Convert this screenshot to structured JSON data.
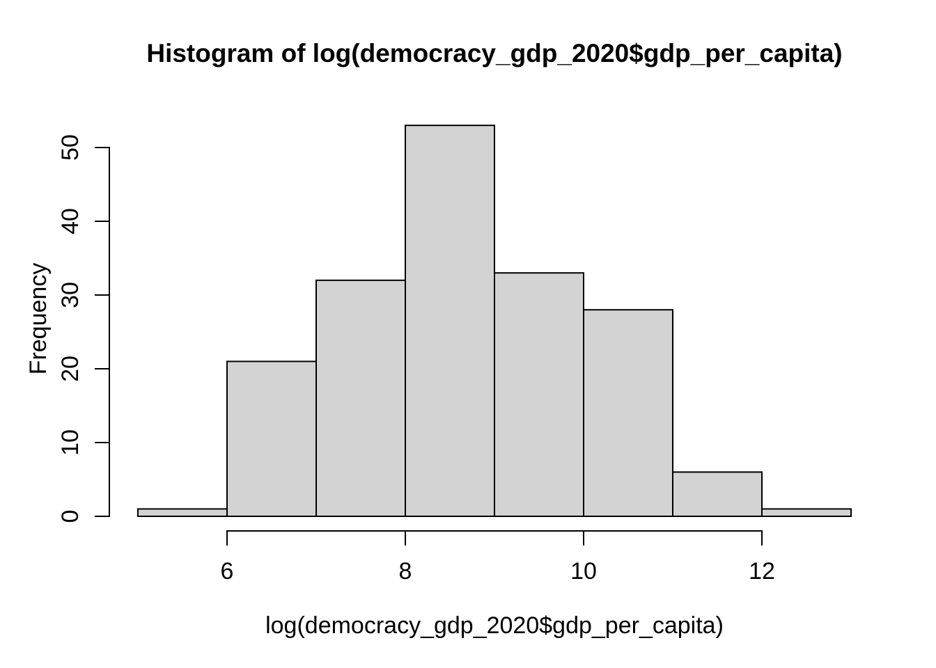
{
  "chart_data": {
    "type": "bar",
    "subtype": "histogram",
    "title": "Histogram of log(democracy_gdp_2020$gdp_per_capita)",
    "xlabel": "log(democracy_gdp_2020$gdp_per_capita)",
    "ylabel": "Frequency",
    "breaks": [
      5,
      6,
      7,
      8,
      9,
      10,
      11,
      12,
      13
    ],
    "counts": [
      1,
      21,
      32,
      53,
      33,
      28,
      6,
      1
    ],
    "x_ticks": [
      6,
      8,
      10,
      12
    ],
    "y_ticks": [
      0,
      10,
      20,
      30,
      40,
      50
    ],
    "xlim": [
      5,
      13
    ],
    "ylim": [
      0,
      53
    ],
    "grid": "off",
    "legend": "none",
    "bar_fill": "#d3d3d3",
    "bar_stroke": "#000000",
    "axis_color": "#000000",
    "background": "#ffffff"
  }
}
